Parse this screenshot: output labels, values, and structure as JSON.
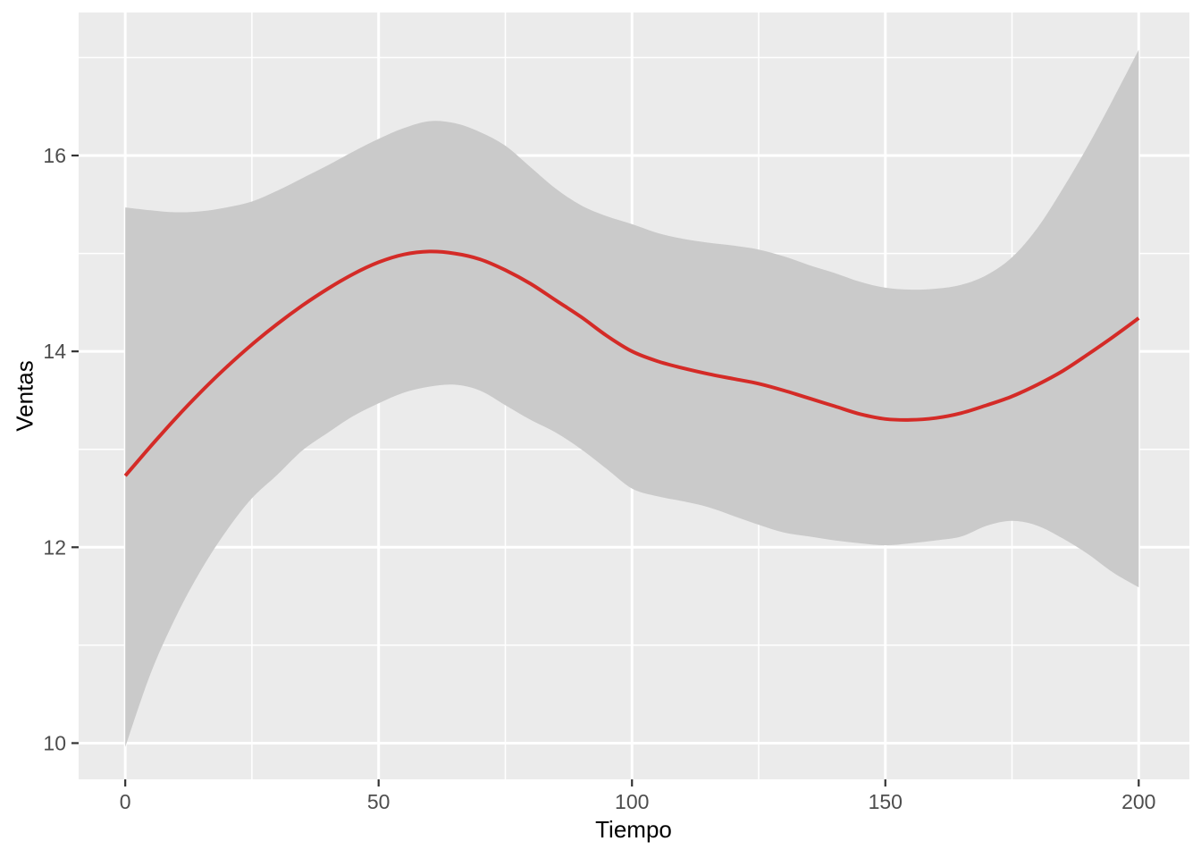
{
  "chart_data": {
    "type": "line",
    "title": "",
    "xlabel": "Tiempo",
    "ylabel": "Ventas",
    "xlim": [
      -9.2,
      210.0
    ],
    "ylim": [
      9.63,
      17.46
    ],
    "grid": true,
    "legend": "none",
    "x_ticks": [
      0,
      50,
      100,
      150,
      200
    ],
    "x_tick_labels": [
      "0",
      "50",
      "100",
      "150",
      "200"
    ],
    "y_ticks": [
      10,
      12,
      14,
      16
    ],
    "y_tick_labels": [
      "10",
      "12",
      "14",
      "16"
    ],
    "x_minor_ticks": [
      25,
      75,
      125,
      175
    ],
    "y_minor_ticks": [
      11,
      13,
      15,
      17
    ],
    "x": [
      0,
      5,
      10,
      15,
      20,
      25,
      30,
      35,
      40,
      45,
      50,
      55,
      60,
      65,
      70,
      75,
      80,
      85,
      90,
      95,
      100,
      105,
      110,
      115,
      120,
      125,
      130,
      135,
      140,
      145,
      150,
      155,
      160,
      165,
      170,
      175,
      180,
      185,
      190,
      195,
      200
    ],
    "series": [
      {
        "name": "loess-smooth",
        "color": "#D42B27",
        "values": [
          12.73,
          13.03,
          13.32,
          13.59,
          13.84,
          14.07,
          14.28,
          14.47,
          14.64,
          14.79,
          14.91,
          14.99,
          15.02,
          15.0,
          14.94,
          14.83,
          14.69,
          14.52,
          14.35,
          14.16,
          14.0,
          13.9,
          13.83,
          13.77,
          13.72,
          13.67,
          13.6,
          13.52,
          13.44,
          13.36,
          13.31,
          13.3,
          13.32,
          13.37,
          13.45,
          13.54,
          13.66,
          13.8,
          13.97,
          14.15,
          14.34
        ]
      }
    ],
    "band": {
      "name": "confidence-band",
      "color": "#CACACA",
      "upper": [
        15.47,
        15.44,
        15.42,
        15.43,
        15.47,
        15.53,
        15.64,
        15.77,
        15.9,
        16.04,
        16.17,
        16.28,
        16.35,
        16.33,
        16.24,
        16.1,
        15.88,
        15.66,
        15.49,
        15.38,
        15.3,
        15.21,
        15.15,
        15.11,
        15.08,
        15.04,
        14.97,
        14.88,
        14.8,
        14.71,
        14.65,
        14.63,
        14.64,
        14.68,
        14.78,
        14.96,
        15.26,
        15.66,
        16.1,
        16.58,
        17.08
      ],
      "lower": [
        9.96,
        10.71,
        11.29,
        11.77,
        12.17,
        12.5,
        12.74,
        12.99,
        13.17,
        13.34,
        13.47,
        13.58,
        13.64,
        13.66,
        13.6,
        13.45,
        13.3,
        13.17,
        13.0,
        12.8,
        12.6,
        12.52,
        12.47,
        12.41,
        12.32,
        12.23,
        12.15,
        12.11,
        12.07,
        12.04,
        12.02,
        12.04,
        12.07,
        12.11,
        12.22,
        12.27,
        12.22,
        12.09,
        11.93,
        11.74,
        11.59
      ]
    }
  },
  "colors": {
    "figure_background": "#FFFFFF",
    "panel_background": "#EBEBEB",
    "grid": "#FFFFFF",
    "band": "#CACACA",
    "line": "#D42B27",
    "tick_mark": "#333333",
    "tick_label": "#4D4D4D",
    "axis_title": "#000000"
  }
}
